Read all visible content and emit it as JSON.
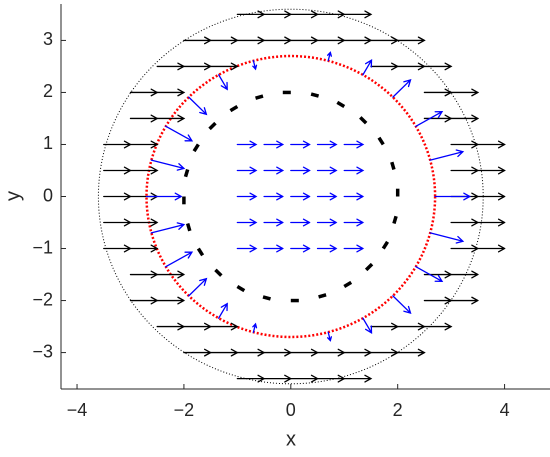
{
  "chart_data": {
    "type": "quiver",
    "xlabel": "x",
    "ylabel": "y",
    "xlim": [
      -4.3,
      4.85
    ],
    "ylim": [
      -3.7,
      3.7
    ],
    "xticks": [
      {
        "value": -4,
        "label": "−4"
      },
      {
        "value": -2,
        "label": "−2"
      },
      0,
      2,
      4
    ],
    "yticks": [
      {
        "value": -3,
        "label": "−3"
      },
      {
        "value": -2,
        "label": "−2"
      },
      {
        "value": -1,
        "label": "−1"
      },
      0,
      1,
      2,
      3
    ],
    "circles": [
      {
        "r": 3.6,
        "color": "#000000",
        "style": "dotted"
      },
      {
        "r": 2.7,
        "color": "#ff0000",
        "style": "dotted"
      }
    ],
    "series": [
      {
        "color": "#000000",
        "head": true,
        "x": [
          -1,
          -0.5,
          0,
          0.5,
          1,
          -2,
          -1.5,
          -1,
          -0.5,
          0,
          0.5,
          1,
          1.5,
          2,
          -2.5,
          -2,
          -1.5,
          1.5,
          2,
          2.5,
          -3,
          -2.5,
          2.5,
          3,
          -3,
          -2.5,
          2.5,
          3,
          -3.5,
          -3,
          3,
          3.5,
          -3.5,
          -3,
          3,
          3.5,
          -3.5,
          -3,
          3,
          3.5,
          -3.5,
          -3,
          3,
          3.5,
          -3.5,
          -3,
          3,
          3.5,
          -3,
          -2.5,
          2.5,
          3,
          -3,
          -2.5,
          2.5,
          3,
          -2.5,
          -2,
          -1.5,
          1.5,
          2,
          2.5,
          -2,
          -1.5,
          -1,
          -0.5,
          0,
          0.5,
          1,
          1.5,
          2,
          -1,
          -0.5,
          0,
          0.5,
          1
        ],
        "y": [
          3.5,
          3.5,
          3.5,
          3.5,
          3.5,
          3,
          3,
          3,
          3,
          3,
          3,
          3,
          3,
          3,
          2.5,
          2.5,
          2.5,
          2.5,
          2.5,
          2.5,
          2,
          2,
          2,
          2,
          1.5,
          1.5,
          1.5,
          1.5,
          1,
          1,
          1,
          1,
          0.5,
          0.5,
          0.5,
          0.5,
          0,
          0,
          0,
          0,
          -0.5,
          -0.5,
          -0.5,
          -0.5,
          -1,
          -1,
          -1,
          -1,
          -1.5,
          -1.5,
          -1.5,
          -1.5,
          -2,
          -2,
          -2,
          -2,
          -2.5,
          -2.5,
          -2.5,
          -2.5,
          -2.5,
          -2.5,
          -3,
          -3,
          -3,
          -3,
          -3,
          -3,
          -3,
          -3,
          -3,
          -3.5,
          -3.5,
          -3.5,
          -3.5,
          -3.5
        ],
        "u": [
          0.5,
          0.5,
          0.5,
          0.5,
          0.5,
          0.5,
          0.5,
          0.5,
          0.5,
          0.5,
          0.5,
          0.5,
          0.5,
          0.5,
          0.5,
          0.5,
          0.5,
          0.5,
          0.5,
          0.5,
          0.5,
          0.5,
          0.5,
          0.5,
          0.5,
          0.5,
          0.5,
          0.5,
          0.5,
          0.5,
          0.5,
          0.5,
          0.5,
          0.5,
          0.5,
          0.5,
          0.5,
          0.5,
          0.5,
          0.5,
          0.5,
          0.5,
          0.5,
          0.5,
          0.5,
          0.5,
          0.5,
          0.5,
          0.5,
          0.5,
          0.5,
          0.5,
          0.5,
          0.5,
          0.5,
          0.5,
          0.5,
          0.5,
          0.5,
          0.5,
          0.5,
          0.5,
          0.5,
          0.5,
          0.5,
          0.5,
          0.5,
          0.5,
          0.5,
          0.5,
          0.5,
          0.5,
          0.5,
          0.5,
          0.5,
          0.5
        ],
        "v": [
          0,
          0,
          0,
          0,
          0,
          0,
          0,
          0,
          0,
          0,
          0,
          0,
          0,
          0,
          0,
          0,
          0,
          0,
          0,
          0,
          0,
          0,
          0,
          0,
          0,
          0,
          0,
          0,
          0,
          0,
          0,
          0,
          0,
          0,
          0,
          0,
          0,
          0,
          0,
          0,
          0,
          0,
          0,
          0,
          0,
          0,
          0,
          0,
          0,
          0,
          0,
          0,
          0,
          0,
          0,
          0,
          0,
          0,
          0,
          0,
          0,
          0,
          0,
          0,
          0,
          0,
          0,
          0,
          0,
          0,
          0,
          0,
          0,
          0,
          0,
          0
        ]
      },
      {
        "color": "#0000ff",
        "head": true,
        "x": [
          -1,
          -0.5,
          0,
          0.5,
          1,
          -1,
          -0.5,
          0,
          0.5,
          1,
          -1,
          -0.5,
          0,
          0.5,
          1,
          -1,
          -0.5,
          0,
          0.5,
          1,
          -1,
          -0.5,
          0,
          0.5,
          1
        ],
        "y": [
          1,
          1,
          1,
          1,
          1,
          0.5,
          0.5,
          0.5,
          0.5,
          0.5,
          0,
          0,
          0,
          0,
          0,
          -0.5,
          -0.5,
          -0.5,
          -0.5,
          -0.5,
          -1,
          -1,
          -1,
          -1,
          -1
        ],
        "u": [
          0.35,
          0.35,
          0.35,
          0.35,
          0.35,
          0.35,
          0.35,
          0.35,
          0.35,
          0.35,
          0.35,
          0.35,
          0.35,
          0.35,
          0.35,
          0.35,
          0.35,
          0.35,
          0.35,
          0.35,
          0.35,
          0.35,
          0.35,
          0.35,
          0.35
        ],
        "v": [
          0,
          0,
          0,
          0,
          0,
          0,
          0,
          0,
          0,
          0,
          0,
          0,
          0,
          0,
          0,
          0,
          0,
          0,
          0,
          0,
          0,
          0,
          0,
          0,
          0
        ]
      },
      {
        "color": "#0000ff",
        "head": true,
        "x": [
          2.7,
          2.61,
          2.34,
          1.91,
          1.35,
          0.7,
          -0.7,
          -1.35,
          -1.91,
          -2.34,
          -2.61,
          -2.7,
          -2.61,
          -2.34,
          -1.91,
          -1.35,
          -0.7,
          0.7,
          1.35,
          1.91,
          2.34,
          2.61
        ],
        "y": [
          0,
          0.7,
          1.35,
          1.91,
          2.34,
          2.61,
          2.61,
          2.34,
          1.91,
          1.35,
          0.7,
          0,
          -0.7,
          -1.35,
          -1.91,
          -2.34,
          -2.61,
          -2.61,
          -2.34,
          -1.91,
          -1.35,
          -0.7
        ],
        "u": [
          0.65,
          0.61,
          0.49,
          0.33,
          0.16,
          0.04,
          0.04,
          0.16,
          0.33,
          0.49,
          0.61,
          0.65,
          0.61,
          0.49,
          0.33,
          0.16,
          0.04,
          0.04,
          0.16,
          0.33,
          0.49,
          0.61
        ],
        "v": [
          0,
          0.16,
          0.28,
          0.33,
          0.28,
          0.16,
          -0.16,
          -0.28,
          -0.33,
          -0.28,
          -0.16,
          0,
          0.16,
          0.28,
          0.33,
          0.28,
          0.16,
          -0.16,
          -0.28,
          -0.33,
          -0.28,
          -0.16
        ]
      },
      {
        "color": "#000000",
        "head": false,
        "x": [
          2,
          1.93,
          1.73,
          1.41,
          1,
          0.52,
          0,
          -0.52,
          -1,
          -1.41,
          -1.73,
          -1.93,
          -2,
          -1.93,
          -1.73,
          -1.41,
          -1,
          -0.52,
          0,
          0.52,
          1,
          1.41,
          1.73,
          1.93
        ],
        "y": [
          0,
          0.52,
          1,
          1.41,
          1.73,
          1.93,
          2,
          1.93,
          1.73,
          1.41,
          1,
          0.52,
          0,
          -0.52,
          -1,
          -1.41,
          -1.73,
          -1.93,
          -2,
          -1.93,
          -1.73,
          -1.41,
          -1,
          -0.52
        ],
        "u": [
          0,
          -0.04,
          -0.08,
          -0.11,
          -0.13,
          -0.14,
          -0.15,
          -0.14,
          -0.13,
          -0.11,
          -0.08,
          -0.04,
          0,
          0.04,
          0.08,
          0.11,
          0.13,
          0.14,
          0.15,
          0.14,
          0.13,
          0.11,
          0.08,
          0.04
        ],
        "v": [
          0.15,
          0.14,
          0.13,
          0.11,
          0.08,
          0.04,
          0,
          -0.04,
          -0.08,
          -0.11,
          -0.13,
          -0.14,
          -0.15,
          -0.14,
          -0.13,
          -0.11,
          -0.08,
          -0.04,
          0,
          0.04,
          0.08,
          0.11,
          0.13,
          0.14
        ]
      }
    ]
  }
}
